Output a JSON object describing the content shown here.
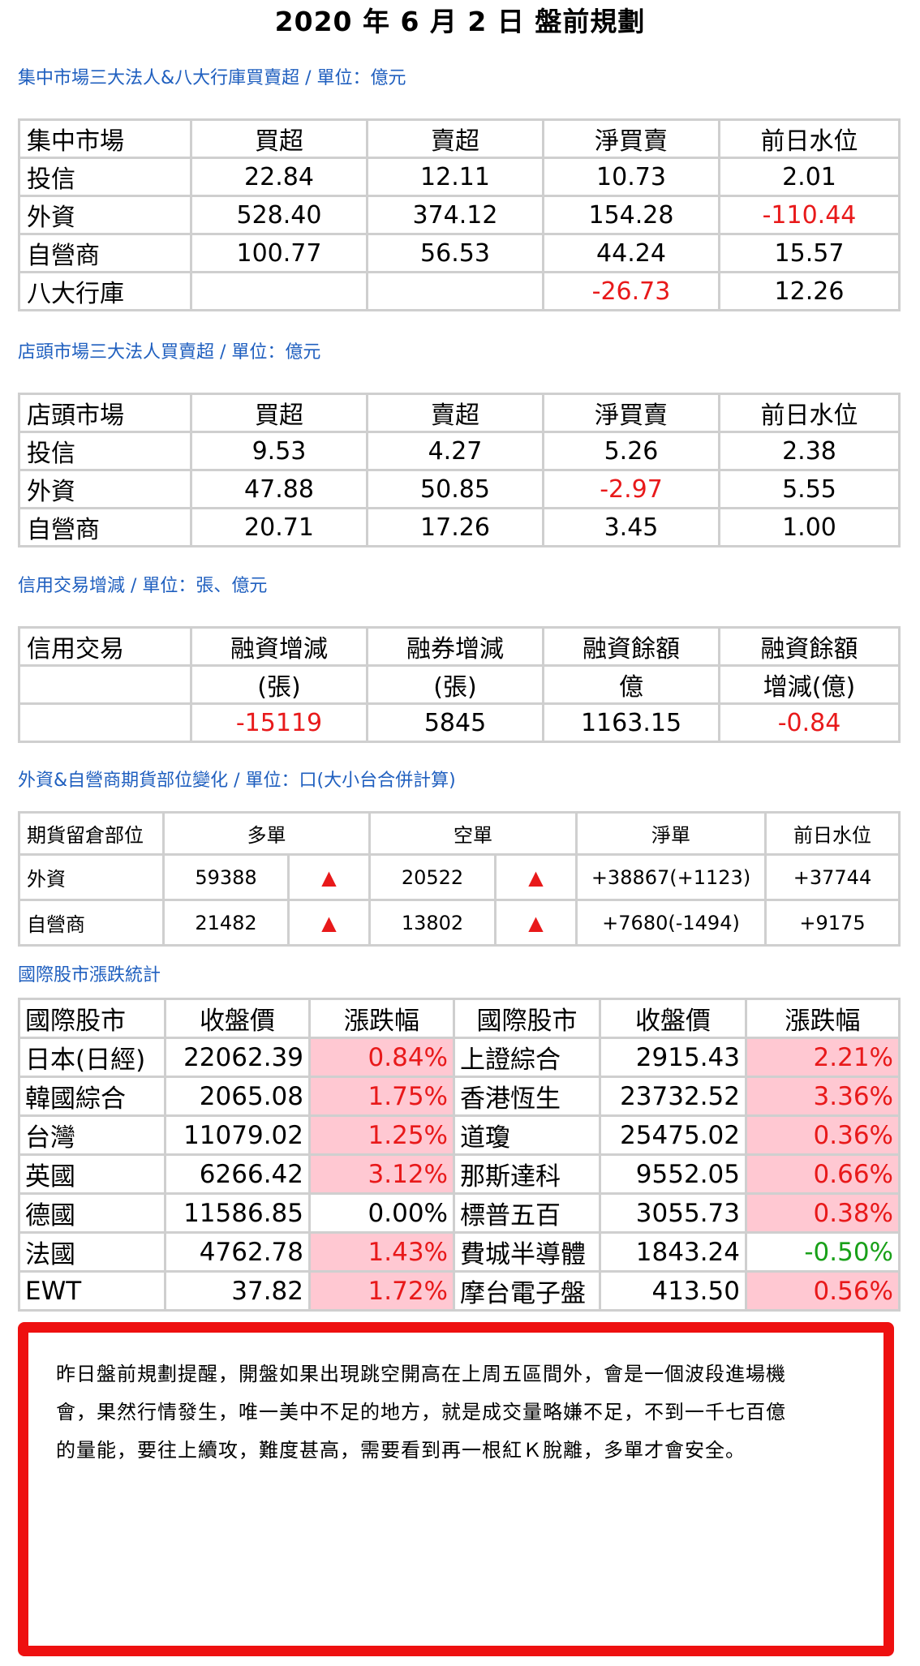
{
  "title": "2020 年 6 月 2 日  盤前規劃",
  "section1": {
    "caption": "集中市場三大法人&八大行庫買賣超 / 單位：億元",
    "headers": [
      "集中市場",
      "買超",
      "賣超",
      "淨買賣",
      "前日水位"
    ],
    "rows": [
      [
        "投信",
        "22.84",
        "12.11",
        "10.73",
        "2.01"
      ],
      [
        "外資",
        "528.40",
        "374.12",
        "154.28",
        "-110.44"
      ],
      [
        "自營商",
        "100.77",
        "56.53",
        "44.24",
        "15.57"
      ],
      [
        "八大行庫",
        "",
        "",
        "-26.73",
        "12.26"
      ]
    ]
  },
  "section2": {
    "caption": "店頭市場三大法人買賣超 / 單位：億元",
    "headers": [
      "店頭市場",
      "買超",
      "賣超",
      "淨買賣",
      "前日水位"
    ],
    "rows": [
      [
        "投信",
        "9.53",
        "4.27",
        "5.26",
        "2.38"
      ],
      [
        "外資",
        "47.88",
        "50.85",
        "-2.97",
        "5.55"
      ],
      [
        "自營商",
        "20.71",
        "17.26",
        "3.45",
        "1.00"
      ]
    ]
  },
  "section3": {
    "caption": "信用交易增減 / 單位：張、億元",
    "headers": [
      "信用交易",
      "融資增減",
      "融券增減",
      "融資餘額",
      "融資餘額"
    ],
    "subheaders": [
      "",
      "(張)",
      "(張)",
      "億",
      "增減(億)"
    ],
    "values": [
      "",
      "-15119",
      "5845",
      "1163.15",
      "-0.84"
    ]
  },
  "section4": {
    "caption": "外資&自營商期貨部位變化 / 單位：口(大小台合併計算)",
    "headers": [
      "期貨留倉部位",
      "多單",
      "空單",
      "淨單",
      "前日水位"
    ],
    "rows": [
      {
        "name": "外資",
        "long": "59388",
        "long_arrow": "▲",
        "short": "20522",
        "short_arrow": "▲",
        "net": "+38867(+1123)",
        "prev": "+37744"
      },
      {
        "name": "自營商",
        "long": "21482",
        "long_arrow": "▲",
        "short": "13802",
        "short_arrow": "▲",
        "net": "+7680(-1494)",
        "prev": "+9175"
      }
    ]
  },
  "section5": {
    "caption": "國際股市漲跌統計",
    "headers": [
      "國際股市",
      "收盤價",
      "漲跌幅",
      "國際股市",
      "收盤價",
      "漲跌幅"
    ],
    "rows": [
      [
        "日本(日經)",
        "22062.39",
        "0.84%",
        "上證綜合",
        "2915.43",
        "2.21%"
      ],
      [
        "韓國綜合",
        "2065.08",
        "1.75%",
        "香港恆生",
        "23732.52",
        "3.36%"
      ],
      [
        "台灣",
        "11079.02",
        "1.25%",
        "道瓊",
        "25475.02",
        "0.36%"
      ],
      [
        "英國",
        "6266.42",
        "3.12%",
        "那斯達科",
        "9552.05",
        "0.66%"
      ],
      [
        "德國",
        "11586.85",
        "0.00%",
        "標普五百",
        "3055.73",
        "0.38%"
      ],
      [
        "法國",
        "4762.78",
        "1.43%",
        "費城半導體",
        "1843.24",
        "-0.50%"
      ],
      [
        "EWT",
        "37.82",
        "1.72%",
        "摩台電子盤",
        "413.50",
        "0.56%"
      ]
    ]
  },
  "colors": {
    "caption": "#1f5fbf",
    "negative": "#e8191a",
    "negative_intl": "#19a019",
    "positive_fill": "#ffc8d2",
    "note_border": "#ee1010"
  },
  "note": {
    "lines": [
      "昨日盤前規劃提醒，開盤如果出現跳空開高在上周五區間外，會是一個波段進場機",
      "會，果然行情發生，唯一美中不足的地方，就是成交量略嫌不足，不到一千七百億",
      "的量能，要往上續攻，難度甚高，需要看到再一根紅Ｋ脫離，多單才會安全。"
    ]
  }
}
